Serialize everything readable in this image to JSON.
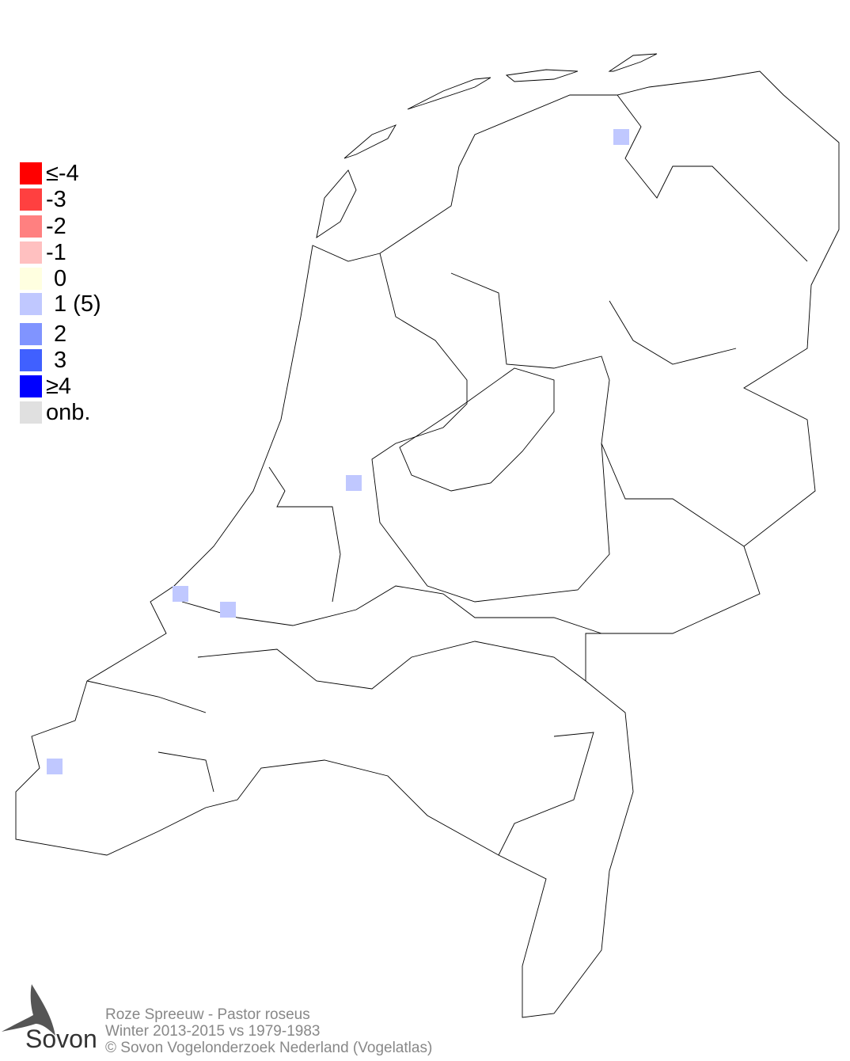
{
  "legend": {
    "items": [
      {
        "label": "≤-4",
        "color": "#ff0000"
      },
      {
        "label": "-3",
        "color": "#ff4040"
      },
      {
        "label": "-2",
        "color": "#ff8080"
      },
      {
        "label": "-1",
        "color": "#ffc0c0"
      },
      {
        "label": "0",
        "color": "#ffffe0"
      },
      {
        "label": "1 (5)",
        "color": "#c0c8ff"
      },
      {
        "label": "2",
        "color": "#8094ff"
      },
      {
        "label": "3",
        "color": "#4060ff"
      },
      {
        "label": "≥4",
        "color": "#0000ff"
      },
      {
        "label": "onb.",
        "color": "#e0e0e0"
      }
    ]
  },
  "map": {
    "cell_class": "1 (5)",
    "cell_color": "#c0c8ff",
    "cell_count": 5
  },
  "footer": {
    "species": "Roze Spreeuw - Pastor roseus",
    "period": "Winter 2013-2015 vs 1979-1983",
    "copyright": "© Sovon Vogelonderzoek Nederland (Vogelatlas)"
  },
  "logo": {
    "text": "Sovon"
  }
}
